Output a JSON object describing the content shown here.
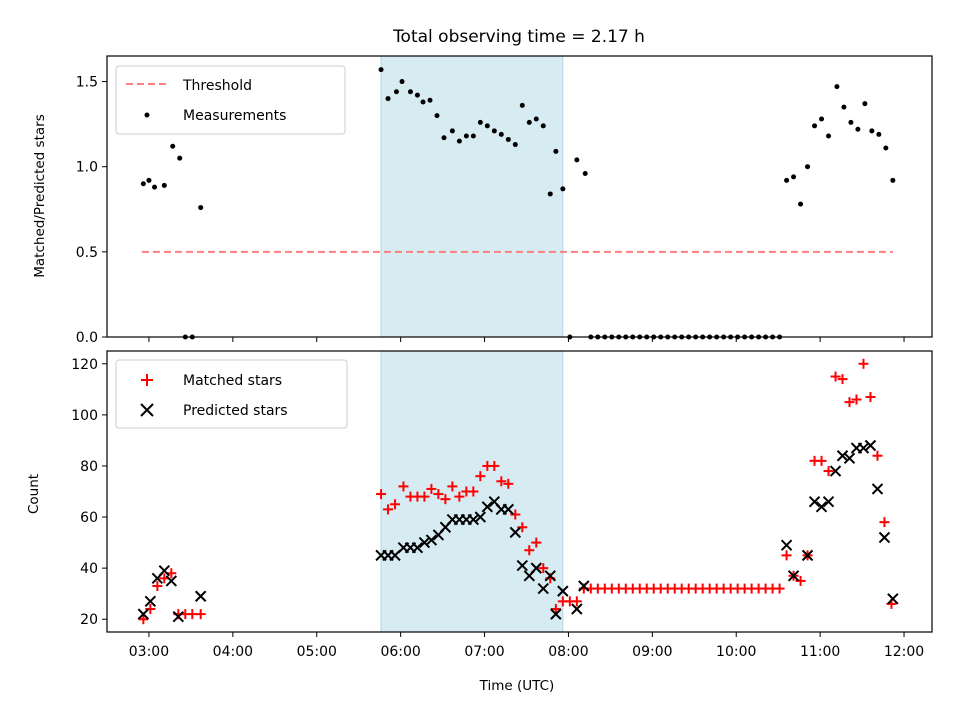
{
  "figure": {
    "title": "Total observing time = 2.17 h",
    "xlabel": "Time (UTC)"
  },
  "colors": {
    "threshold": "#ff7f7f",
    "shade": "#add8e6",
    "measurement": "#000000",
    "matched": "#ff0000",
    "predicted": "#000000"
  },
  "chart_data": [
    {
      "type": "scatter",
      "ylabel": "Matched/Predicted stars",
      "xlim": [
        "02:30",
        "12:20"
      ],
      "ylim": [
        0,
        1.65
      ],
      "yticks": [
        0.0,
        0.5,
        1.0,
        1.5
      ],
      "ytick_labels": [
        "0.0",
        "0.5",
        "1.0",
        "1.5"
      ],
      "grid": false,
      "legend": {
        "placement": "upper-left",
        "entries": [
          "Threshold",
          "Measurements"
        ]
      },
      "shaded_interval": [
        "05:46",
        "07:56"
      ],
      "threshold": {
        "name": "Threshold",
        "y": 0.5,
        "x_range": [
          "02:55",
          "11:52"
        ]
      },
      "series": [
        {
          "name": "Measurements",
          "points": [
            [
              "02:56",
              0.9
            ],
            [
              "03:00",
              0.92
            ],
            [
              "03:04",
              0.88
            ],
            [
              "03:11",
              0.89
            ],
            [
              "03:17",
              1.12
            ],
            [
              "03:22",
              1.05
            ],
            [
              "03:26",
              0.0
            ],
            [
              "03:31",
              0.0
            ],
            [
              "03:37",
              0.76
            ],
            [
              "05:46",
              1.57
            ],
            [
              "05:51",
              1.4
            ],
            [
              "05:57",
              1.44
            ],
            [
              "06:01",
              1.5
            ],
            [
              "06:07",
              1.44
            ],
            [
              "06:12",
              1.42
            ],
            [
              "06:16",
              1.38
            ],
            [
              "06:21",
              1.39
            ],
            [
              "06:26",
              1.3
            ],
            [
              "06:31",
              1.17
            ],
            [
              "06:37",
              1.21
            ],
            [
              "06:42",
              1.15
            ],
            [
              "06:47",
              1.18
            ],
            [
              "06:52",
              1.18
            ],
            [
              "06:57",
              1.26
            ],
            [
              "07:02",
              1.24
            ],
            [
              "07:07",
              1.21
            ],
            [
              "07:12",
              1.19
            ],
            [
              "07:17",
              1.16
            ],
            [
              "07:22",
              1.13
            ],
            [
              "07:27",
              1.36
            ],
            [
              "07:32",
              1.26
            ],
            [
              "07:37",
              1.28
            ],
            [
              "07:42",
              1.24
            ],
            [
              "07:47",
              0.84
            ],
            [
              "07:51",
              1.09
            ],
            [
              "07:56",
              0.87
            ],
            [
              "08:01",
              0.0
            ],
            [
              "08:06",
              1.04
            ],
            [
              "08:12",
              0.96
            ],
            [
              "08:16",
              0.0
            ],
            [
              "08:21",
              0.0
            ],
            [
              "08:26",
              0.0
            ],
            [
              "08:31",
              0.0
            ],
            [
              "08:36",
              0.0
            ],
            [
              "08:41",
              0.0
            ],
            [
              "08:46",
              0.0
            ],
            [
              "08:51",
              0.0
            ],
            [
              "08:56",
              0.0
            ],
            [
              "09:01",
              0.0
            ],
            [
              "09:06",
              0.0
            ],
            [
              "09:11",
              0.0
            ],
            [
              "09:16",
              0.0
            ],
            [
              "09:21",
              0.0
            ],
            [
              "09:26",
              0.0
            ],
            [
              "09:31",
              0.0
            ],
            [
              "09:36",
              0.0
            ],
            [
              "09:41",
              0.0
            ],
            [
              "09:46",
              0.0
            ],
            [
              "09:51",
              0.0
            ],
            [
              "09:56",
              0.0
            ],
            [
              "10:01",
              0.0
            ],
            [
              "10:06",
              0.0
            ],
            [
              "10:11",
              0.0
            ],
            [
              "10:16",
              0.0
            ],
            [
              "10:21",
              0.0
            ],
            [
              "10:26",
              0.0
            ],
            [
              "10:31",
              0.0
            ],
            [
              "10:36",
              0.92
            ],
            [
              "10:41",
              0.94
            ],
            [
              "10:46",
              0.78
            ],
            [
              "10:51",
              1.0
            ],
            [
              "10:56",
              1.24
            ],
            [
              "11:01",
              1.28
            ],
            [
              "11:06",
              1.18
            ],
            [
              "11:12",
              1.47
            ],
            [
              "11:17",
              1.35
            ],
            [
              "11:22",
              1.26
            ],
            [
              "11:27",
              1.22
            ],
            [
              "11:32",
              1.37
            ],
            [
              "11:37",
              1.21
            ],
            [
              "11:42",
              1.19
            ],
            [
              "11:47",
              1.11
            ],
            [
              "11:52",
              0.92
            ]
          ]
        }
      ]
    },
    {
      "type": "scatter",
      "ylabel": "Count",
      "xlim": [
        "02:30",
        "12:20"
      ],
      "ylim": [
        15,
        125
      ],
      "yticks": [
        20,
        40,
        60,
        80,
        100,
        120
      ],
      "ytick_labels": [
        "20",
        "40",
        "60",
        "80",
        "100",
        "120"
      ],
      "xticks": [
        "03:00",
        "04:00",
        "05:00",
        "06:00",
        "07:00",
        "08:00",
        "09:00",
        "10:00",
        "11:00",
        "12:00"
      ],
      "grid": false,
      "legend": {
        "placement": "upper-left",
        "entries": [
          "Matched stars",
          "Predicted stars"
        ]
      },
      "shaded_interval": [
        "05:46",
        "07:56"
      ],
      "series": [
        {
          "name": "Matched stars",
          "marker": "plus",
          "points": [
            [
              "02:56",
              20
            ],
            [
              "03:01",
              24
            ],
            [
              "03:06",
              33
            ],
            [
              "03:11",
              36
            ],
            [
              "03:16",
              38
            ],
            [
              "03:21",
              22
            ],
            [
              "03:26",
              22
            ],
            [
              "03:31",
              22
            ],
            [
              "03:37",
              22
            ],
            [
              "05:46",
              69
            ],
            [
              "05:51",
              63
            ],
            [
              "05:56",
              65
            ],
            [
              "06:02",
              72
            ],
            [
              "06:07",
              68
            ],
            [
              "06:12",
              68
            ],
            [
              "06:17",
              68
            ],
            [
              "06:22",
              71
            ],
            [
              "06:27",
              69
            ],
            [
              "06:32",
              67
            ],
            [
              "06:37",
              72
            ],
            [
              "06:42",
              68
            ],
            [
              "06:47",
              70
            ],
            [
              "06:52",
              70
            ],
            [
              "06:57",
              76
            ],
            [
              "07:02",
              80
            ],
            [
              "07:07",
              80
            ],
            [
              "07:12",
              74
            ],
            [
              "07:17",
              73
            ],
            [
              "07:22",
              61
            ],
            [
              "07:27",
              56
            ],
            [
              "07:32",
              47
            ],
            [
              "07:37",
              50
            ],
            [
              "07:42",
              40
            ],
            [
              "07:47",
              36
            ],
            [
              "07:51",
              24
            ],
            [
              "07:56",
              27
            ],
            [
              "08:01",
              27
            ],
            [
              "08:06",
              27
            ],
            [
              "08:11",
              32
            ],
            [
              "08:16",
              32
            ],
            [
              "08:21",
              32
            ],
            [
              "08:26",
              32
            ],
            [
              "08:31",
              32
            ],
            [
              "08:36",
              32
            ],
            [
              "08:41",
              32
            ],
            [
              "08:46",
              32
            ],
            [
              "08:51",
              32
            ],
            [
              "08:56",
              32
            ],
            [
              "09:01",
              32
            ],
            [
              "09:06",
              32
            ],
            [
              "09:11",
              32
            ],
            [
              "09:16",
              32
            ],
            [
              "09:21",
              32
            ],
            [
              "09:26",
              32
            ],
            [
              "09:31",
              32
            ],
            [
              "09:36",
              32
            ],
            [
              "09:41",
              32
            ],
            [
              "09:46",
              32
            ],
            [
              "09:51",
              32
            ],
            [
              "09:56",
              32
            ],
            [
              "10:01",
              32
            ],
            [
              "10:06",
              32
            ],
            [
              "10:11",
              32
            ],
            [
              "10:16",
              32
            ],
            [
              "10:21",
              32
            ],
            [
              "10:26",
              32
            ],
            [
              "10:31",
              32
            ],
            [
              "10:36",
              45
            ],
            [
              "10:41",
              37
            ],
            [
              "10:46",
              35
            ],
            [
              "10:51",
              45
            ],
            [
              "10:56",
              82
            ],
            [
              "11:01",
              82
            ],
            [
              "11:06",
              78
            ],
            [
              "11:11",
              115
            ],
            [
              "11:16",
              114
            ],
            [
              "11:21",
              105
            ],
            [
              "11:26",
              106
            ],
            [
              "11:31",
              120
            ],
            [
              "11:36",
              107
            ],
            [
              "11:41",
              84
            ],
            [
              "11:46",
              58
            ],
            [
              "11:51",
              26
            ]
          ]
        },
        {
          "name": "Predicted stars",
          "marker": "x",
          "points": [
            [
              "02:56",
              22
            ],
            [
              "03:01",
              27
            ],
            [
              "03:06",
              36
            ],
            [
              "03:11",
              39
            ],
            [
              "03:16",
              35
            ],
            [
              "03:21",
              21
            ],
            [
              "03:37",
              29
            ],
            [
              "05:46",
              45
            ],
            [
              "05:51",
              45
            ],
            [
              "05:56",
              45
            ],
            [
              "06:02",
              48
            ],
            [
              "06:07",
              48
            ],
            [
              "06:12",
              48
            ],
            [
              "06:17",
              50
            ],
            [
              "06:22",
              51
            ],
            [
              "06:27",
              53
            ],
            [
              "06:32",
              56
            ],
            [
              "06:37",
              59
            ],
            [
              "06:42",
              59
            ],
            [
              "06:47",
              59
            ],
            [
              "06:52",
              59
            ],
            [
              "06:57",
              60
            ],
            [
              "07:02",
              64
            ],
            [
              "07:07",
              66
            ],
            [
              "07:12",
              63
            ],
            [
              "07:17",
              63
            ],
            [
              "07:22",
              54
            ],
            [
              "07:27",
              41
            ],
            [
              "07:32",
              37
            ],
            [
              "07:37",
              40
            ],
            [
              "07:42",
              32
            ],
            [
              "07:47",
              37
            ],
            [
              "07:51",
              22
            ],
            [
              "07:56",
              31
            ],
            [
              "08:06",
              24
            ],
            [
              "08:11",
              33
            ],
            [
              "10:36",
              49
            ],
            [
              "10:41",
              37
            ],
            [
              "10:51",
              45
            ],
            [
              "10:56",
              66
            ],
            [
              "11:01",
              64
            ],
            [
              "11:06",
              66
            ],
            [
              "11:11",
              78
            ],
            [
              "11:16",
              84
            ],
            [
              "11:21",
              83
            ],
            [
              "11:26",
              87
            ],
            [
              "11:31",
              87
            ],
            [
              "11:36",
              88
            ],
            [
              "11:41",
              71
            ],
            [
              "11:46",
              52
            ],
            [
              "11:52",
              28
            ]
          ]
        }
      ]
    }
  ]
}
